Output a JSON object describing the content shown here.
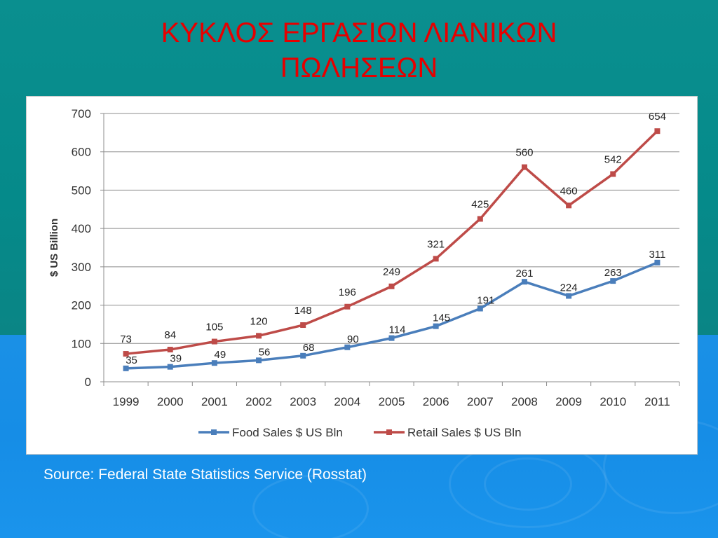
{
  "slide": {
    "title_line1": "ΚΥΚΛΟΣ ΕΡΓΑΣΙΩΝ ΛΙΑΝΙΚΩΝ",
    "title_line2": "ΠΩΛΗΣΕΩΝ",
    "source": "Source: Federal State Statistics Service (Rosstat)"
  },
  "chart_data": {
    "type": "line",
    "title": "",
    "xlabel": "",
    "ylabel": "$ US Billion",
    "ylim": [
      0,
      700
    ],
    "yticks": [
      0,
      100,
      200,
      300,
      400,
      500,
      600,
      700
    ],
    "grid": true,
    "legend_position": "bottom",
    "categories": [
      "1999",
      "2000",
      "2001",
      "2002",
      "2003",
      "2004",
      "2005",
      "2006",
      "2007",
      "2008",
      "2009",
      "2010",
      "2011"
    ],
    "series": [
      {
        "name": "Food Sales $ US Bln",
        "color": "#4a7ebb",
        "values": [
          35,
          39,
          49,
          56,
          68,
          90,
          114,
          145,
          191,
          261,
          224,
          263,
          311
        ]
      },
      {
        "name": "Retail Sales $ US Bln",
        "color": "#be4b48",
        "values": [
          73,
          84,
          105,
          120,
          148,
          196,
          249,
          321,
          425,
          560,
          460,
          542,
          654
        ]
      }
    ]
  }
}
